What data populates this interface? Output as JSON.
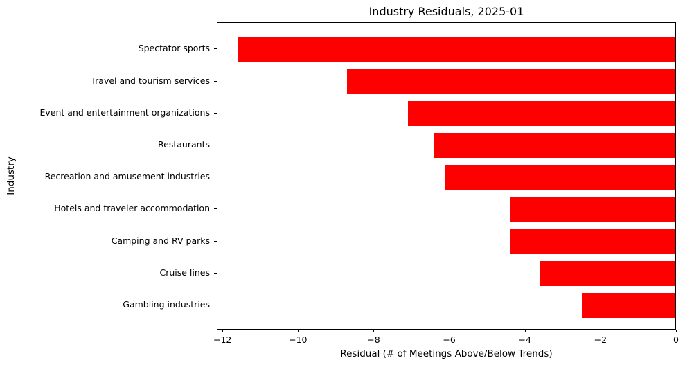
{
  "chart_data": {
    "type": "bar",
    "orientation": "horizontal",
    "title": "Industry Residuals, 2025-01",
    "xlabel": "Residual (# of Meetings Above/Below Trends)",
    "ylabel": "Industry",
    "categories": [
      "Spectator sports",
      "Travel and tourism services",
      "Event and entertainment organizations",
      "Restaurants",
      "Recreation and amusement industries",
      "Hotels and traveler accommodation",
      "Camping and RV parks",
      "Cruise lines",
      "Gambling industries"
    ],
    "values": [
      -11.6,
      -8.7,
      -7.1,
      -6.4,
      -6.1,
      -4.4,
      -4.4,
      -3.6,
      -2.5
    ],
    "bar_color": "#ff0000",
    "xlim": [
      -12.15,
      0
    ],
    "x_ticks": [
      -12,
      -10,
      -8,
      -6,
      -4,
      -2,
      0
    ],
    "x_tick_labels": [
      "−12",
      "−10",
      "−8",
      "−6",
      "−4",
      "−2",
      "0"
    ],
    "grid": false,
    "legend": null,
    "background_color": "#ffffff"
  }
}
